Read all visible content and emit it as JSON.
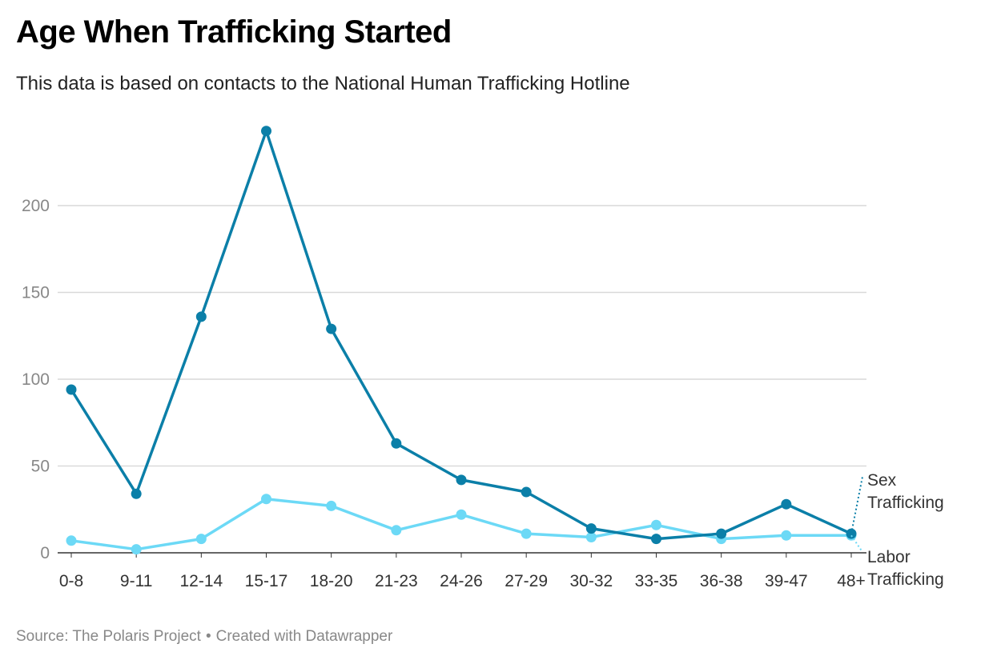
{
  "header": {
    "title": "Age When Trafficking Started",
    "subtitle": "This data is based on contacts to the National Human Trafficking Hotline"
  },
  "footer": {
    "source": "Source: The Polaris Project",
    "separator": "•",
    "credit": "Created with Datawrapper"
  },
  "chart_data": {
    "type": "line",
    "title": "Age When Trafficking Started",
    "subtitle": "This data is based on contacts to the National Human Trafficking Hotline",
    "categories": [
      "0-8",
      "9-11",
      "12-14",
      "15-17",
      "18-20",
      "21-23",
      "24-26",
      "27-29",
      "30-32",
      "33-35",
      "36-38",
      "39-47",
      "48+"
    ],
    "series": [
      {
        "name": "Sex Trafficking",
        "label_lines": [
          "Sex",
          "Trafficking"
        ],
        "color": "#0b7fa8",
        "values": [
          94,
          34,
          136,
          243,
          129,
          63,
          42,
          35,
          14,
          8,
          11,
          28,
          11
        ]
      },
      {
        "name": "Labor Trafficking",
        "label_lines": [
          "Labor",
          "Trafficking"
        ],
        "color": "#6cd9f6",
        "values": [
          7,
          2,
          8,
          31,
          27,
          13,
          22,
          11,
          9,
          16,
          8,
          10,
          10
        ]
      }
    ],
    "yticks": [
      0,
      50,
      100,
      150,
      200
    ],
    "ylim": [
      0,
      243
    ],
    "grid": true,
    "legend": "direct labels at right end of lines",
    "xlabel": "",
    "ylabel": ""
  }
}
